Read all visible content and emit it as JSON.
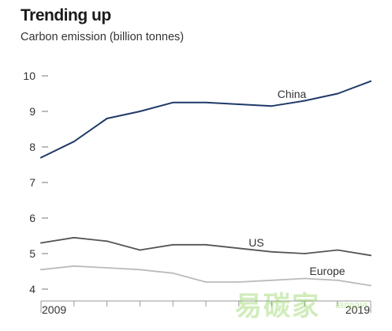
{
  "chart_data": {
    "type": "line",
    "title": "Trending up",
    "subtitle": "Carbon emission (billion tonnes)",
    "xlabel": "",
    "ylabel": "",
    "x": [
      2009,
      2010,
      2011,
      2012,
      2013,
      2014,
      2015,
      2016,
      2017,
      2018,
      2019
    ],
    "x_tick_labels": [
      "2009",
      "2019"
    ],
    "ylim": [
      4,
      10
    ],
    "y_ticks": [
      4,
      5,
      6,
      7,
      8,
      9,
      10
    ],
    "grid": false,
    "series": [
      {
        "name": "China",
        "color": "#1f3a68",
        "values": [
          7.7,
          8.15,
          8.8,
          9.0,
          9.25,
          9.25,
          9.2,
          9.15,
          9.3,
          9.5,
          9.85
        ]
      },
      {
        "name": "US",
        "color": "#555555",
        "values": [
          5.3,
          5.45,
          5.35,
          5.1,
          5.25,
          5.25,
          5.15,
          5.05,
          5.0,
          5.1,
          4.95
        ]
      },
      {
        "name": "Europe",
        "color": "#bbbbbb",
        "values": [
          4.55,
          4.65,
          4.6,
          4.55,
          4.45,
          4.2,
          4.2,
          4.25,
          4.3,
          4.25,
          4.1
        ]
      }
    ]
  },
  "watermark": {
    "text": "易碳家",
    "latin": "tanjiayi"
  }
}
